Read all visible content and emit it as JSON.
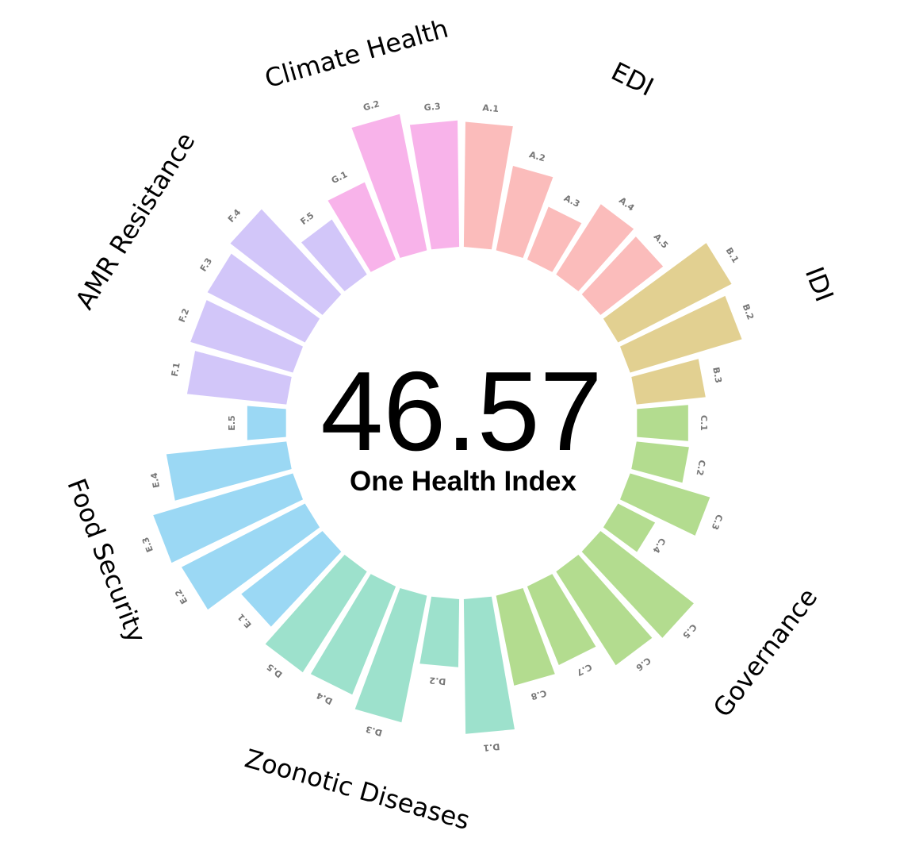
{
  "chart_data": {
    "type": "bar",
    "subtype": "circular-bar",
    "center_value": "46.57",
    "center_label": "One Health Index",
    "groups": [
      {
        "name": "EDI",
        "color": "#fbbcbb",
        "items": [
          {
            "label": "A.1",
            "value": 0.9
          },
          {
            "label": "A.2",
            "value": 0.62
          },
          {
            "label": "A.3",
            "value": 0.41
          },
          {
            "label": "A.4",
            "value": 0.6
          },
          {
            "label": "A.5",
            "value": 0.57
          }
        ]
      },
      {
        "name": "IDI",
        "color": "#e2d091",
        "items": [
          {
            "label": "B.1",
            "value": 0.92
          },
          {
            "label": "B.2",
            "value": 0.84
          },
          {
            "label": "B.3",
            "value": 0.5
          }
        ]
      },
      {
        "name": "Governance",
        "color": "#b3dc8f",
        "items": [
          {
            "label": "C.1",
            "value": 0.37
          },
          {
            "label": "C.2",
            "value": 0.38
          },
          {
            "label": "C.3",
            "value": 0.6
          },
          {
            "label": "C.4",
            "value": 0.3
          },
          {
            "label": "C.5",
            "value": 0.85
          },
          {
            "label": "C.6",
            "value": 0.8
          },
          {
            "label": "C.7",
            "value": 0.61
          },
          {
            "label": "C.8",
            "value": 0.66
          }
        ]
      },
      {
        "name": "Zoonotic Diseases",
        "color": "#9de1cc",
        "items": [
          {
            "label": "D.1",
            "value": 0.97
          },
          {
            "label": "D.2",
            "value": 0.49
          },
          {
            "label": "D.3",
            "value": 0.93
          },
          {
            "label": "D.4",
            "value": 0.84
          },
          {
            "label": "D.5",
            "value": 0.86
          }
        ]
      },
      {
        "name": "Food Security",
        "color": "#9bd8f4",
        "items": [
          {
            "label": "E.1",
            "value": 0.74
          },
          {
            "label": "E.2",
            "value": 1.0
          },
          {
            "label": "E.3",
            "value": 1.05
          },
          {
            "label": "E.4",
            "value": 0.87
          },
          {
            "label": "E.5",
            "value": 0.28
          }
        ]
      },
      {
        "name": "AMR Resistance",
        "color": "#d2c6f9",
        "items": [
          {
            "label": "F.1",
            "value": 0.72
          },
          {
            "label": "F.2",
            "value": 0.77
          },
          {
            "label": "F.3",
            "value": 0.79
          },
          {
            "label": "F.4",
            "value": 0.84
          },
          {
            "label": "F.5",
            "value": 0.47
          }
        ]
      },
      {
        "name": "Climate Health",
        "color": "#f8b3ea",
        "items": [
          {
            "label": "G.1",
            "value": 0.6
          },
          {
            "label": "G.2",
            "value": 1.0
          },
          {
            "label": "G.3",
            "value": 0.91
          }
        ]
      }
    ]
  }
}
